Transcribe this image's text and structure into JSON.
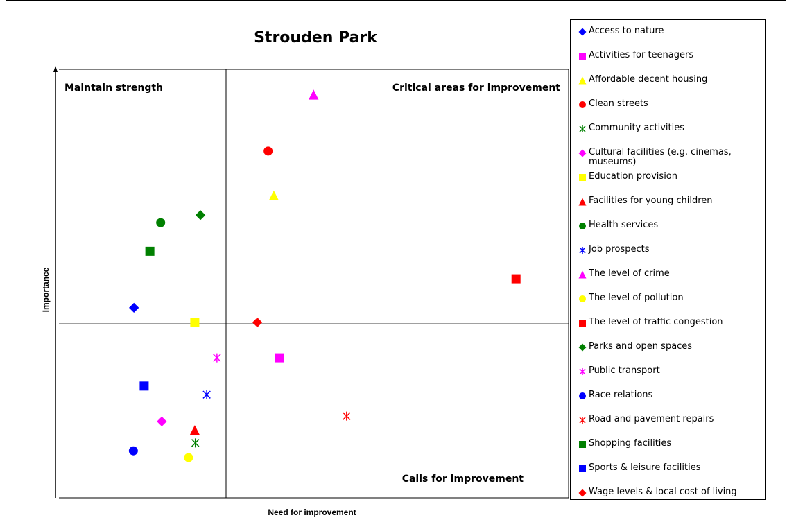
{
  "chart_data": {
    "type": "scatter",
    "title": "Strouden Park",
    "x_label": "Need for improvement",
    "y_label": "Importance",
    "annotations": [
      "Maintain strength",
      "Critical areas for improvement",
      "Calls for improvement"
    ],
    "xlim": [
      -3,
      6
    ],
    "ylim": [
      -5,
      7
    ],
    "series": [
      {
        "name": "Access to nature",
        "color": "#0000ff",
        "marker": "diamond",
        "x": [
          -1.62
        ],
        "values": [
          0.45
        ]
      },
      {
        "name": "Activities for teenagers",
        "color": "#ff00ff",
        "marker": "square",
        "x": [
          0.94
        ],
        "values": [
          -0.95
        ]
      },
      {
        "name": "Affordable decent housing",
        "color": "#ffff00",
        "marker": "triangle",
        "x": [
          0.84
        ],
        "values": [
          3.59
        ]
      },
      {
        "name": "Clean streets",
        "color": "#ff0000",
        "marker": "circle",
        "x": [
          0.74
        ],
        "values": [
          4.83
        ]
      },
      {
        "name": "Community activities",
        "color": "#008000",
        "marker": "star",
        "x": [
          -0.54
        ],
        "values": [
          -3.33
        ]
      },
      {
        "name": "Cultural facilities (e.g. cinemas, museums)",
        "color": "#ff00ff",
        "marker": "diamond",
        "x": [
          -1.13
        ],
        "values": [
          -2.73
        ]
      },
      {
        "name": "Education provision",
        "color": "#ffff00",
        "marker": "square",
        "x": [
          -0.55
        ],
        "values": [
          0.04
        ]
      },
      {
        "name": "Facilities for young children",
        "color": "#ff0000",
        "marker": "triangle",
        "x": [
          -0.55
        ],
        "values": [
          -2.97
        ]
      },
      {
        "name": "Health services",
        "color": "#008000",
        "marker": "circle",
        "x": [
          -1.15
        ],
        "values": [
          2.83
        ]
      },
      {
        "name": "Job prospects",
        "color": "#0000ff",
        "marker": "star",
        "x": [
          -0.34
        ],
        "values": [
          -1.98
        ]
      },
      {
        "name": "The level of crime",
        "color": "#ff00ff",
        "marker": "triangle",
        "x": [
          1.54
        ],
        "values": [
          6.41
        ]
      },
      {
        "name": "The level of pollution",
        "color": "#ffff00",
        "marker": "circle",
        "x": [
          -0.66
        ],
        "values": [
          -3.74
        ]
      },
      {
        "name": "The level of traffic congestion",
        "color": "#ff0000",
        "marker": "square",
        "x": [
          5.1
        ],
        "values": [
          1.26
        ]
      },
      {
        "name": "Parks and open spaces",
        "color": "#008000",
        "marker": "diamond",
        "x": [
          -0.45
        ],
        "values": [
          3.04
        ]
      },
      {
        "name": "Public transport",
        "color": "#ff00ff",
        "marker": "star",
        "x": [
          -0.16
        ],
        "values": [
          -0.95
        ]
      },
      {
        "name": "Race relations",
        "color": "#0000ff",
        "marker": "circle",
        "x": [
          -1.63
        ],
        "values": [
          -3.55
        ]
      },
      {
        "name": "Road and pavement repairs",
        "color": "#ff0000",
        "marker": "star",
        "x": [
          2.12
        ],
        "values": [
          -2.58
        ]
      },
      {
        "name": "Shopping facilities",
        "color": "#008000",
        "marker": "square",
        "x": [
          -1.34
        ],
        "values": [
          2.03
        ]
      },
      {
        "name": "Sports & leisure facilities",
        "color": "#0000ff",
        "marker": "square",
        "x": [
          -1.44
        ],
        "values": [
          -1.74
        ]
      },
      {
        "name": "Wage levels & local cost of living",
        "color": "#ff0000",
        "marker": "diamond",
        "x": [
          0.55
        ],
        "values": [
          0.04
        ]
      }
    ]
  }
}
